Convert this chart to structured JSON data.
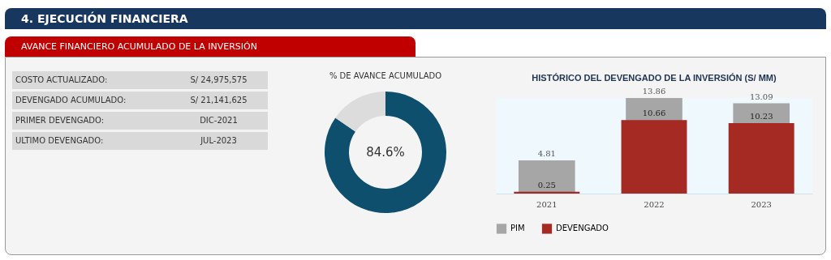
{
  "chart_data": [
    {
      "type": "other",
      "title": "4. EJECUCIÓN FINANCIERA",
      "subtitle": "AVANCE FINANCIERO ACUMULADO DE LA INVERSIÓN",
      "annotations": [
        "COSTO ACTUALIZADO:",
        "S/ 24,975,575",
        "DEVENGADO ACUMULADO:",
        "S/ 21,141,625",
        "PRIMER DEVENGADO:",
        "DIC-2021",
        "ULTIMO DEVENGADO:",
        "JUL-2023"
      ]
    },
    {
      "type": "donut",
      "title": "% DE AVANCE ACUMULADO",
      "categories": [
        null,
        null
      ],
      "values": [
        84.6,
        15.4
      ],
      "colors": [
        "#0d4f6c",
        "#dcdcdc"
      ],
      "value_labels": [
        "84.6%",
        null
      ]
    },
    {
      "type": "bar",
      "title": "HISTÓRICO DEL DEVENGADO DE LA INVERSIÓN (S/ MM)",
      "categories": [
        "2021",
        "2022",
        "2023"
      ],
      "series": [
        {
          "name": "PIM",
          "color": "#a6a6a6",
          "values": [
            4.81,
            13.86,
            13.09
          ]
        },
        {
          "name": "DEVENGADO",
          "color": "#a52a24",
          "values": [
            0.25,
            10.66,
            10.23
          ]
        }
      ],
      "data_labels": true,
      "legend": "bottom",
      "grid": false
    }
  ]
}
